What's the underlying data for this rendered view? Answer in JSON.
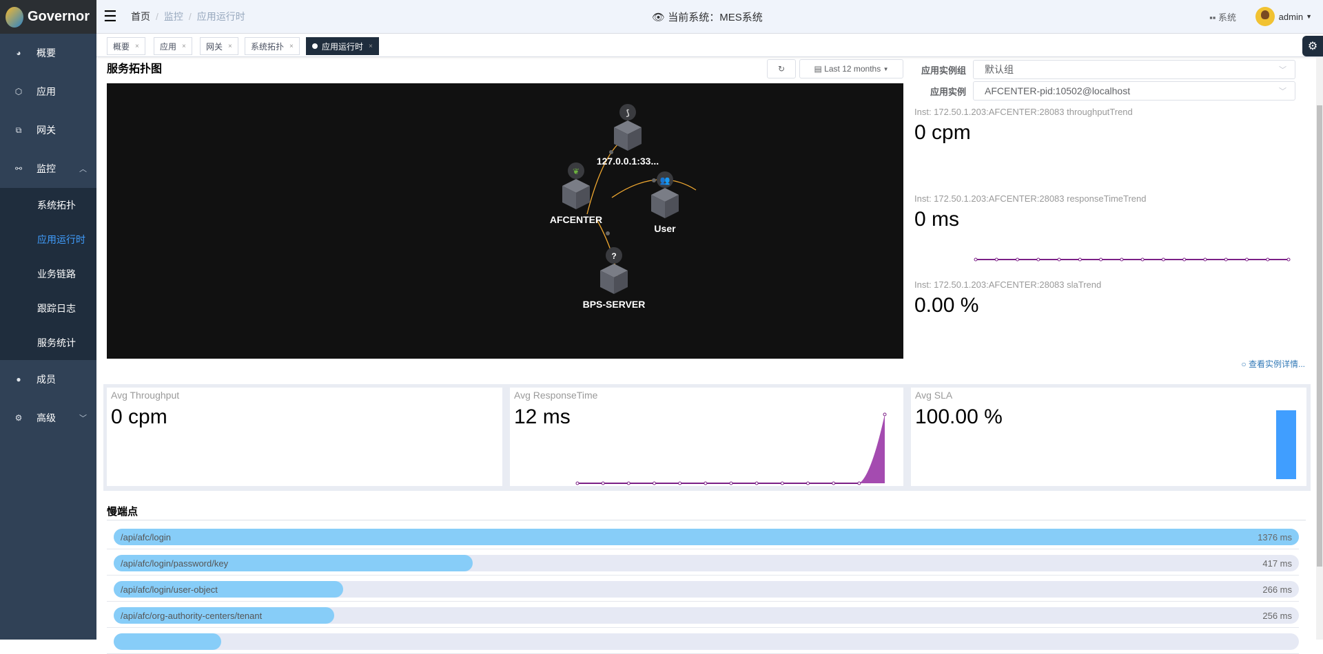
{
  "app": {
    "name": "Governor"
  },
  "sidebar": {
    "items": [
      {
        "label": "概要",
        "icon": "dashboard-icon"
      },
      {
        "label": "应用",
        "icon": "cube-icon"
      },
      {
        "label": "网关",
        "icon": "gateway-icon"
      },
      {
        "label": "监控",
        "icon": "monitor-icon",
        "expanded": true,
        "children": [
          {
            "label": "系统拓扑"
          },
          {
            "label": "应用运行时",
            "active": true
          },
          {
            "label": "业务链路"
          },
          {
            "label": "跟踪日志"
          },
          {
            "label": "服务统计"
          }
        ]
      },
      {
        "label": "成员",
        "icon": "user-icon"
      },
      {
        "label": "高级",
        "icon": "gears-icon"
      }
    ]
  },
  "header": {
    "breadcrumb": [
      "首页",
      "监控",
      "应用运行时"
    ],
    "current_system": "当前系统：MES系统",
    "system_btn": "系统",
    "user": "admin"
  },
  "tabs": [
    {
      "label": "概要"
    },
    {
      "label": "应用"
    },
    {
      "label": "网关"
    },
    {
      "label": "系统拓扑"
    },
    {
      "label": "应用运行时",
      "active": true
    }
  ],
  "topology": {
    "title": "服务拓扑图",
    "time_range": "Last 12 months",
    "nodes": [
      {
        "label": "127.0.0.1:33...",
        "icon": "mysql-icon"
      },
      {
        "label": "AFCENTER",
        "icon": "spring-icon"
      },
      {
        "label": "User",
        "icon": "users-icon"
      },
      {
        "label": "BPS-SERVER",
        "icon": "question-icon"
      }
    ],
    "edge_color": "#f0a830"
  },
  "instance": {
    "group_label": "应用实例组",
    "group_value": "默认组",
    "instance_label": "应用实例",
    "instance_value": "AFCENTER-pid:10502@localhost",
    "trends": [
      {
        "label": "Inst: 172.50.1.203:AFCENTER:28083 throughputTrend",
        "value": "0 cpm"
      },
      {
        "label": "Inst: 172.50.1.203:AFCENTER:28083 responseTimeTrend",
        "value": "0 ms",
        "series": [
          0,
          0,
          0,
          0,
          0,
          0,
          0,
          0,
          0,
          0,
          0,
          0,
          0,
          0,
          0,
          0
        ]
      },
      {
        "label": "Inst: 172.50.1.203:AFCENTER:28083 slaTrend",
        "value": "0.00 %"
      }
    ],
    "details_link": "查看实例详情..."
  },
  "stats": [
    {
      "label": "Avg Throughput",
      "value": "0 cpm"
    },
    {
      "label": "Avg ResponseTime",
      "value": "12 ms",
      "series": [
        0,
        0,
        0,
        0,
        0,
        0,
        0,
        0,
        0,
        0,
        0,
        0,
        12
      ]
    },
    {
      "label": "Avg SLA",
      "value": "100.00 %",
      "bar": 100
    }
  ],
  "chart_color": "#7b1f86",
  "slow_endpoints": {
    "title": "慢端点",
    "items": [
      {
        "name": "/api/afc/login",
        "value": "1376 ms",
        "ms": 1376
      },
      {
        "name": "/api/afc/login/password/key",
        "value": "417 ms",
        "ms": 417
      },
      {
        "name": "/api/afc/login/user-object",
        "value": "266 ms",
        "ms": 266
      },
      {
        "name": "/api/afc/org-authority-centers/tenant",
        "value": "256 ms",
        "ms": 256
      },
      {
        "name": "",
        "value": "",
        "ms": 125
      }
    ]
  }
}
